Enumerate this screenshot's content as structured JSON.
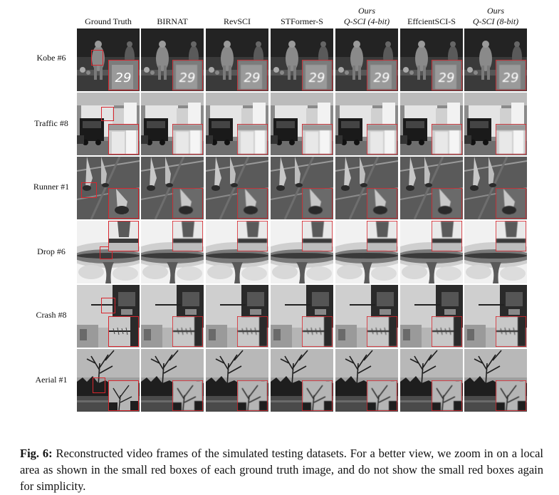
{
  "columns": [
    {
      "lines": [
        "Ground Truth"
      ]
    },
    {
      "lines": [
        "BIRNAT"
      ]
    },
    {
      "lines": [
        "RevSCI"
      ]
    },
    {
      "lines": [
        "STFormer-S"
      ]
    },
    {
      "lines": [
        "Ours",
        "Q-SCI (4-bit)"
      ]
    },
    {
      "lines": [
        "EffcientSCI-S"
      ]
    },
    {
      "lines": [
        "Ours",
        "Q-SCI (8-bit)"
      ]
    }
  ],
  "rows": [
    {
      "label": "Kobe #6",
      "scene": "kobe"
    },
    {
      "label": "Traffic #8",
      "scene": "traffic"
    },
    {
      "label": "Runner #1",
      "scene": "runner"
    },
    {
      "label": "Drop #6",
      "scene": "drop"
    },
    {
      "label": "Crash #8",
      "scene": "crash"
    },
    {
      "label": "Aerial #1",
      "scene": "aerial"
    }
  ],
  "zoom_text": {
    "kobe": "29"
  },
  "caption": {
    "label": "Fig. 6:",
    "text": "Reconstructed video frames of the simulated testing datasets. For a better view, we zoom in on a local area as shown in the small red boxes of each ground truth image, and do not show the small red boxes again for simplicity."
  },
  "colors": {
    "accent_red": "#d8262e"
  }
}
